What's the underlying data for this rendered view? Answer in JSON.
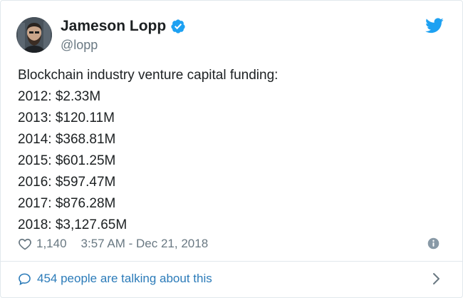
{
  "author": {
    "display_name": "Jameson Lopp",
    "handle": "@lopp",
    "verified": true,
    "avatar_icon": "avatar-photo"
  },
  "tweet": {
    "lines": [
      "Blockchain industry venture capital funding:",
      "2012: $2.33M",
      "2013: $120.11M",
      "2014: $368.81M",
      "2015: $601.25M",
      "2016: $597.47M",
      "2017: $876.28M",
      "2018: $3,127.65M"
    ]
  },
  "meta": {
    "like_count": "1,140",
    "timestamp": "3:57 AM - Dec 21, 2018"
  },
  "conversation": {
    "label": "454 people are talking about this"
  },
  "icons": {
    "verified": "verified-badge-icon",
    "twitter": "twitter-bird-icon",
    "heart": "heart-icon",
    "info": "info-icon",
    "bubble": "speech-bubble-icon",
    "chevron": "chevron-right-icon"
  },
  "colors": {
    "twitter_blue": "#1da1f2",
    "link_blue": "#2b7bb9",
    "secondary_text": "#697882",
    "primary_text": "#1c2022",
    "border": "#e1e8ed"
  }
}
